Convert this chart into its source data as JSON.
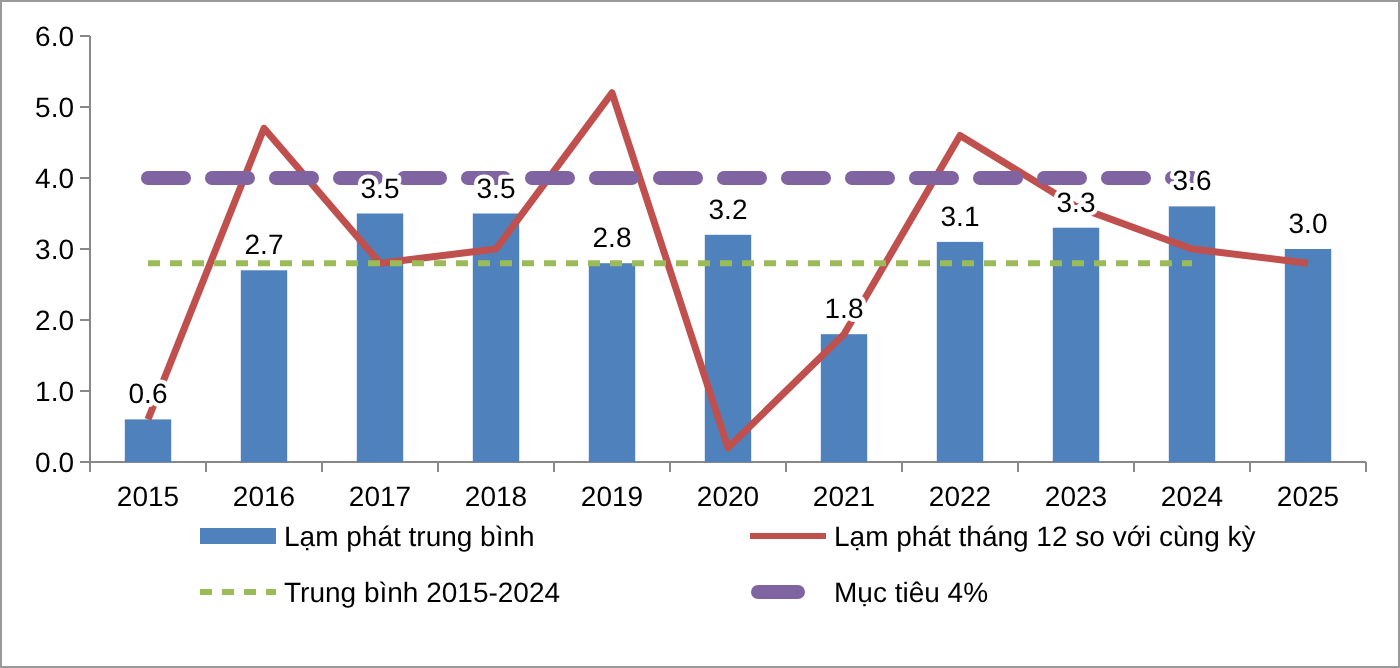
{
  "chart_data": {
    "type": "bar",
    "categories": [
      "2015",
      "2016",
      "2017",
      "2018",
      "2019",
      "2020",
      "2021",
      "2022",
      "2023",
      "2024",
      "2025"
    ],
    "series": [
      {
        "name": "Lạm phát trung bình",
        "color": "#4f81bd",
        "values": [
          0.6,
          2.7,
          3.5,
          3.5,
          2.8,
          3.2,
          1.8,
          3.1,
          3.3,
          3.6,
          3.0
        ],
        "value_labels": [
          "0.6",
          "2.7",
          "3.5",
          "3.5",
          "2.8",
          "3.2",
          "1.8",
          "3.1",
          "3.3",
          "3.6",
          "3.0"
        ]
      },
      {
        "name": "Lạm phát tháng 12 so với cùng kỳ",
        "type": "line",
        "color": "#c0504d",
        "line_style": "solid",
        "values": [
          0.6,
          4.7,
          2.8,
          3.0,
          5.2,
          0.2,
          1.8,
          4.6,
          3.6,
          3.0,
          2.8
        ]
      },
      {
        "name": "Trung bình 2015-2024",
        "type": "line",
        "color": "#9bbb59",
        "line_style": "dashed",
        "values": [
          2.8,
          2.8,
          2.8,
          2.8,
          2.8,
          2.8,
          2.8,
          2.8,
          2.8,
          2.8,
          null
        ]
      },
      {
        "name": "Mục tiêu 4%",
        "type": "line",
        "color": "#8064a2",
        "line_style": "longdash",
        "values": [
          4,
          4,
          4,
          4,
          4,
          4,
          4,
          4,
          4,
          4,
          null
        ]
      }
    ],
    "ylim": [
      0,
      6
    ],
    "yticks": [
      {
        "value": 0,
        "label": "0.0"
      },
      {
        "value": 1,
        "label": "1.0"
      },
      {
        "value": 2,
        "label": "2.0"
      },
      {
        "value": 3,
        "label": "3.0"
      },
      {
        "value": 4,
        "label": "4.0"
      },
      {
        "value": 5,
        "label": "5.0"
      },
      {
        "value": 6,
        "label": "6.0"
      }
    ],
    "grid": false,
    "legend": "bottom",
    "marker": "none"
  }
}
